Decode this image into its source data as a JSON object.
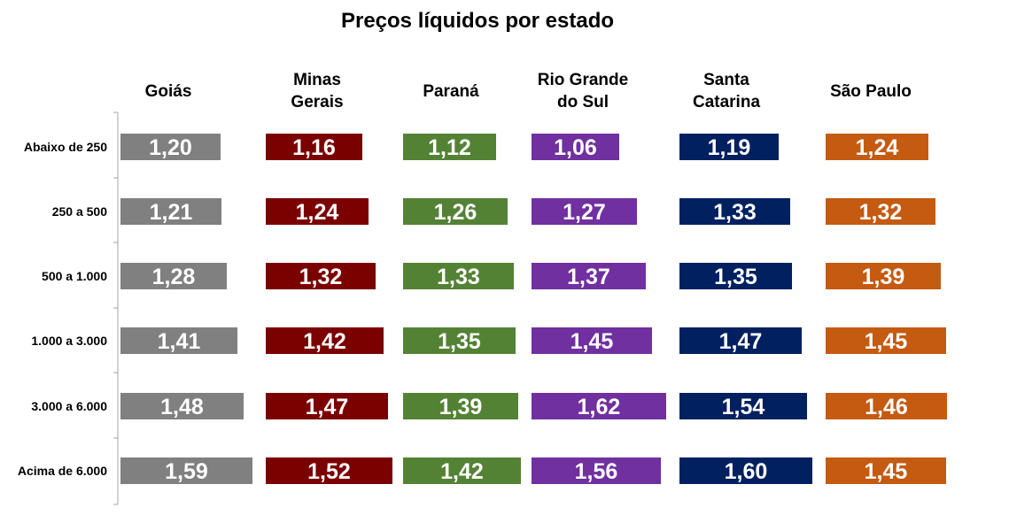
{
  "chart_data": {
    "type": "bar",
    "orientation": "horizontal",
    "layout": "small-multiples",
    "title": "Preços líquidos por estado",
    "categories": [
      "Abaixo de 250",
      "250 a 500",
      "500 a 1.000",
      "1.000 a 3.000",
      "3.000 a 6.000",
      "Acima de 6.000"
    ],
    "series": [
      {
        "name": "Goiás",
        "label_lines": [
          "Goiás"
        ],
        "color": "#808080",
        "values": [
          1.2,
          1.21,
          1.28,
          1.41,
          1.48,
          1.59
        ],
        "labels": [
          "1,20",
          "1,21",
          "1,28",
          "1,41",
          "1,48",
          "1,59"
        ]
      },
      {
        "name": "Minas Gerais",
        "label_lines": [
          "Minas",
          "Gerais"
        ],
        "color": "#7b0000",
        "values": [
          1.16,
          1.24,
          1.32,
          1.42,
          1.47,
          1.52
        ],
        "labels": [
          "1,16",
          "1,24",
          "1,32",
          "1,42",
          "1,47",
          "1,52"
        ]
      },
      {
        "name": "Paraná",
        "label_lines": [
          "Paraná"
        ],
        "color": "#548235",
        "values": [
          1.12,
          1.26,
          1.33,
          1.35,
          1.39,
          1.42
        ],
        "labels": [
          "1,12",
          "1,26",
          "1,33",
          "1,35",
          "1,39",
          "1,42"
        ]
      },
      {
        "name": "Rio Grande do Sul",
        "label_lines": [
          "Rio Grande",
          "do Sul"
        ],
        "color": "#7030a0",
        "values": [
          1.06,
          1.27,
          1.37,
          1.45,
          1.62,
          1.56
        ],
        "labels": [
          "1,06",
          "1,27",
          "1,37",
          "1,45",
          "1,62",
          "1,56"
        ]
      },
      {
        "name": "Santa Catarina",
        "label_lines": [
          "Santa",
          "Catarina"
        ],
        "color": "#002060",
        "values": [
          1.19,
          1.33,
          1.35,
          1.47,
          1.54,
          1.6
        ],
        "labels": [
          "1,19",
          "1,33",
          "1,35",
          "1,47",
          "1,54",
          "1,60"
        ]
      },
      {
        "name": "São Paulo",
        "label_lines": [
          "São Paulo"
        ],
        "color": "#c55a11",
        "values": [
          1.24,
          1.32,
          1.39,
          1.45,
          1.46,
          1.45
        ],
        "labels": [
          "1,24",
          "1,32",
          "1,39",
          "1,45",
          "1,46",
          "1,45"
        ]
      }
    ],
    "xlim": [
      0,
      1.62
    ],
    "grid": false,
    "legend": "none",
    "value_label_color": "#ffffff"
  }
}
